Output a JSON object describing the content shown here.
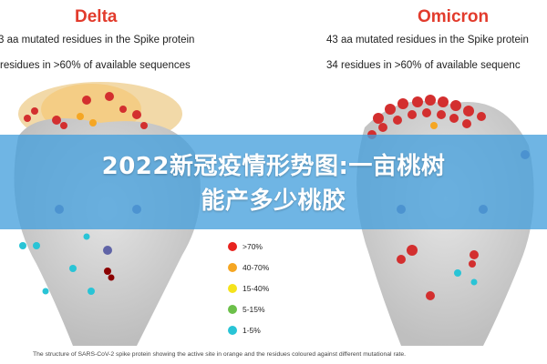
{
  "banner": {
    "title_line1": "2022新冠疫情形势图:一亩桃树",
    "title_line2": "能产多少桃胶"
  },
  "left_panel": {
    "title": "Delta",
    "line1": "3 aa mutated residues in the Spike protein",
    "line2": "residues in >60% of available sequences"
  },
  "right_panel": {
    "title": "Omicron",
    "line1": "43 aa mutated residues in the Spike protein",
    "line2": "34 residues in >60% of available sequenc"
  },
  "legend": {
    "items": [
      {
        "label": ">70%",
        "color": "#e8231f"
      },
      {
        "label": "40-70%",
        "color": "#f5a623"
      },
      {
        "label": "15-40%",
        "color": "#f5e31c"
      },
      {
        "label": "5-15%",
        "color": "#6cc04a"
      },
      {
        "label": "1-5%",
        "color": "#29c4d6"
      }
    ]
  },
  "caption": "The structure of SARS-CoV-2 spike protein showing the active site in orange and the residues coloured against different mutational rate.",
  "colors": {
    "title_red": "#e23b2c",
    "banner_blue": "#46a0dc",
    "protein_gray": "#c9c9c9"
  }
}
